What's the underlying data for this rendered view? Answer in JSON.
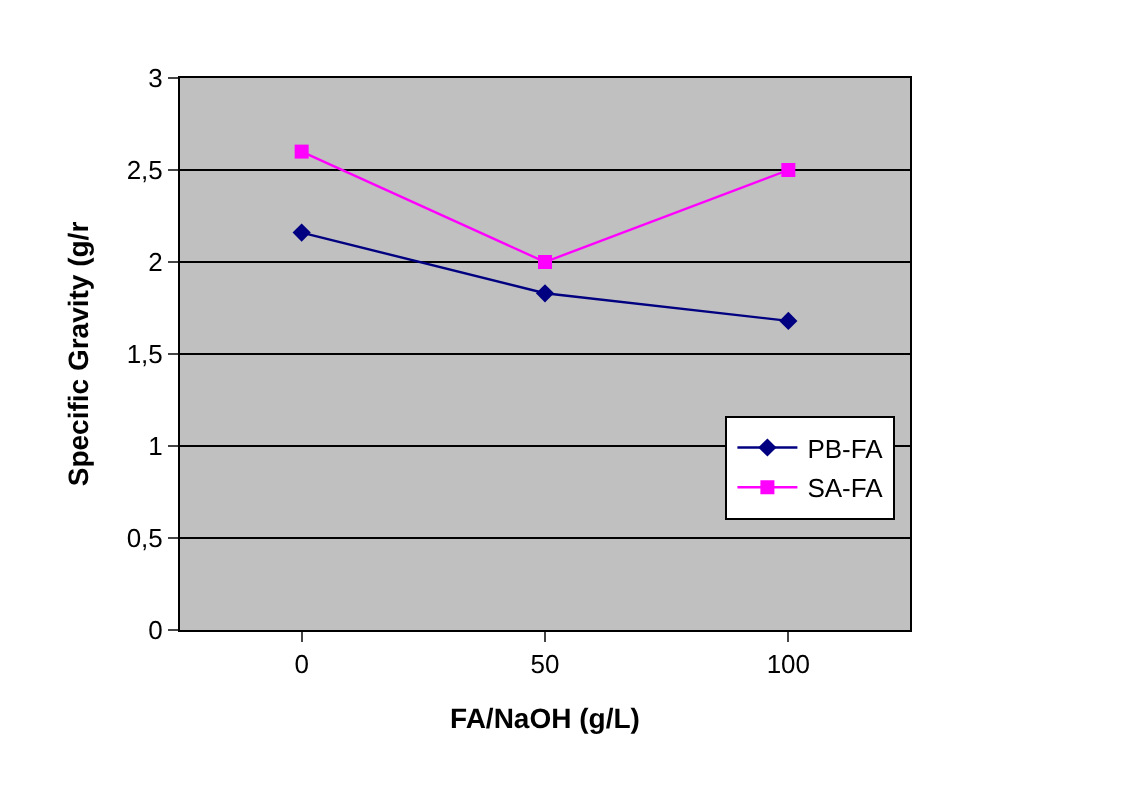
{
  "chart_data": {
    "type": "line",
    "xlabel": "FA/NaOH (g/L)",
    "ylabel": "Specific Gravity (g/r",
    "categories": [
      "0",
      "50",
      "100"
    ],
    "series": [
      {
        "name": "PB-FA",
        "color": "#000080",
        "marker": "diamond",
        "values": [
          2.16,
          1.83,
          1.68
        ]
      },
      {
        "name": "SA-FA",
        "color": "#ff00ff",
        "marker": "square",
        "values": [
          2.6,
          2.0,
          2.5
        ]
      }
    ],
    "ylim": [
      0,
      3
    ],
    "yticks": [
      0,
      {
        "value": 0.5,
        "label": "0,5"
      },
      1,
      {
        "value": 1.5,
        "label": "1,5"
      },
      2,
      {
        "value": 2.5,
        "label": "2,5"
      },
      3
    ],
    "grid": "y",
    "legend": "bottom right",
    "line_style": "solid"
  }
}
